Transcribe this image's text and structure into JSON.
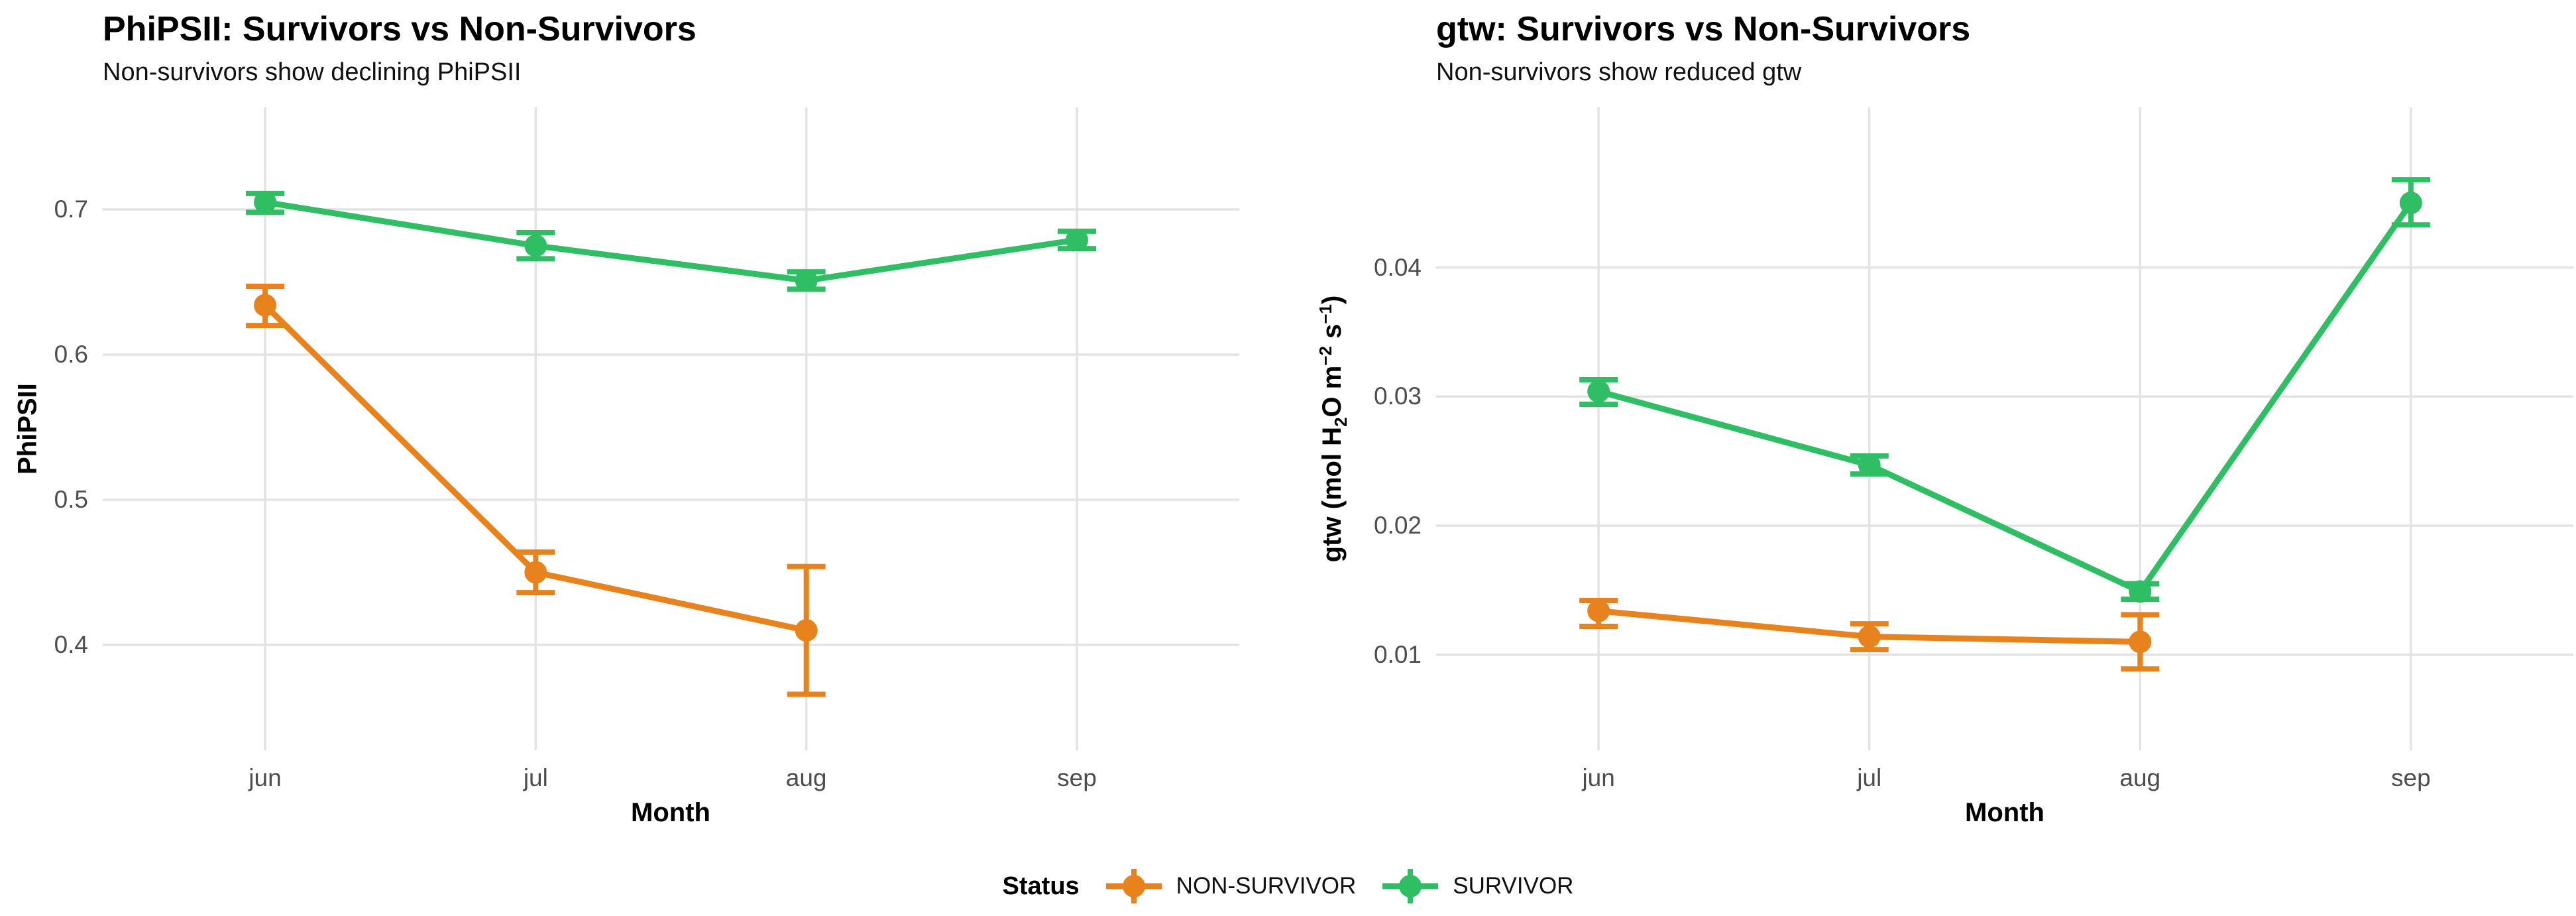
{
  "figure": {
    "background": "#ffffff"
  },
  "colors": {
    "non_survivor": "#E8821D",
    "survivor": "#2FBE64",
    "gridline": "#E3E3E3",
    "tick_label": "#4D4D4D",
    "text": "#000000"
  },
  "legend": {
    "title": "Status",
    "items": [
      {
        "label": "NON-SURVIVOR",
        "color": "#E8821D"
      },
      {
        "label": "SURVIVOR",
        "color": "#2FBE64"
      }
    ]
  },
  "chart_data": [
    {
      "type": "line",
      "title": "PhiPSII: Survivors vs Non-Survivors",
      "subtitle": "Non-survivors show declining PhiPSII",
      "xlabel": "Month",
      "ylabel": "PhiPSII",
      "categories": [
        "jun",
        "jul",
        "aug",
        "sep"
      ],
      "yticks": [
        0.4,
        0.5,
        0.6,
        0.7
      ],
      "ytick_labels": [
        "0.4",
        "0.5",
        "0.6",
        "0.7"
      ],
      "ylim": [
        0.3274,
        0.7703
      ],
      "grid": "major-gridlines-on, no-axis-lines, no-panel-border",
      "legend_position": "shared-bottom",
      "series": [
        {
          "name": "NON-SURVIVOR",
          "color": "#E8821D",
          "values": [
            0.634,
            0.45,
            0.41,
            null
          ],
          "err_low": [
            0.62,
            0.436,
            0.366,
            null
          ],
          "err_high": [
            0.647,
            0.464,
            0.454,
            null
          ]
        },
        {
          "name": "SURVIVOR",
          "color": "#2FBE64",
          "values": [
            0.705,
            0.675,
            0.651,
            0.679
          ],
          "err_low": [
            0.698,
            0.666,
            0.645,
            0.673
          ],
          "err_high": [
            0.711,
            0.684,
            0.657,
            0.685
          ]
        }
      ]
    },
    {
      "type": "line",
      "title": "gtw: Survivors vs Non-Survivors",
      "subtitle": "Non-survivors show reduced gtw",
      "xlabel": "Month",
      "ylabel": "gtw (mol H2O m-2 s-1)",
      "ylabel_rich": [
        [
          "text",
          "gtw (mol H"
        ],
        [
          "sub",
          "2"
        ],
        [
          "text",
          "O m"
        ],
        [
          "sup",
          "−2"
        ],
        [
          "text",
          " s"
        ],
        [
          "sup",
          "−1"
        ],
        [
          "text",
          ")"
        ]
      ],
      "categories": [
        "jun",
        "jul",
        "aug",
        "sep"
      ],
      "yticks": [
        0.01,
        0.02,
        0.03,
        0.04
      ],
      "ytick_labels": [
        "0.01",
        "0.02",
        "0.03",
        "0.04"
      ],
      "ylim": [
        0.0026,
        0.0524
      ],
      "grid": "major-gridlines-on, no-axis-lines, no-panel-border",
      "legend_position": "shared-bottom",
      "series": [
        {
          "name": "NON-SURVIVOR",
          "color": "#E8821D",
          "values": [
            0.0134,
            0.0114,
            0.011,
            null
          ],
          "err_low": [
            0.0122,
            0.0104,
            0.0089,
            null
          ],
          "err_high": [
            0.0142,
            0.0124,
            0.0131,
            null
          ]
        },
        {
          "name": "SURVIVOR",
          "color": "#2FBE64",
          "values": [
            0.0304,
            0.0247,
            0.0149,
            0.045
          ],
          "err_low": [
            0.0294,
            0.024,
            0.0143,
            0.0433
          ],
          "err_high": [
            0.0313,
            0.0254,
            0.0155,
            0.0468
          ]
        }
      ]
    }
  ]
}
